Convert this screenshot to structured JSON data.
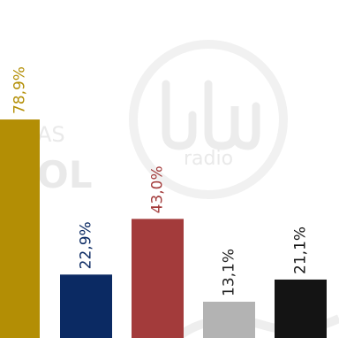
{
  "watermark": {
    "brand_text": "radio",
    "partial_text_top": "AS",
    "partial_text_bottom": "OL"
  },
  "chart_data": {
    "type": "bar",
    "title": "",
    "xlabel": "",
    "ylabel": "",
    "ylim": [
      0,
      100
    ],
    "grid": false,
    "legend": "none",
    "categories": [
      "",
      "",
      "",
      "",
      ""
    ],
    "values": [
      78.9,
      22.9,
      43.0,
      13.1,
      21.1
    ],
    "value_labels": [
      "78,9%",
      "22,9%",
      "43,0%",
      "13,1%",
      "21,1%"
    ],
    "bar_colors": [
      "#b38e05",
      "#0b2a63",
      "#a33b3b",
      "#b3b3b3",
      "#141414"
    ],
    "label_colors": [
      "#b38e05",
      "#0b2a63",
      "#a33b3b",
      "#222222",
      "#141414"
    ]
  }
}
